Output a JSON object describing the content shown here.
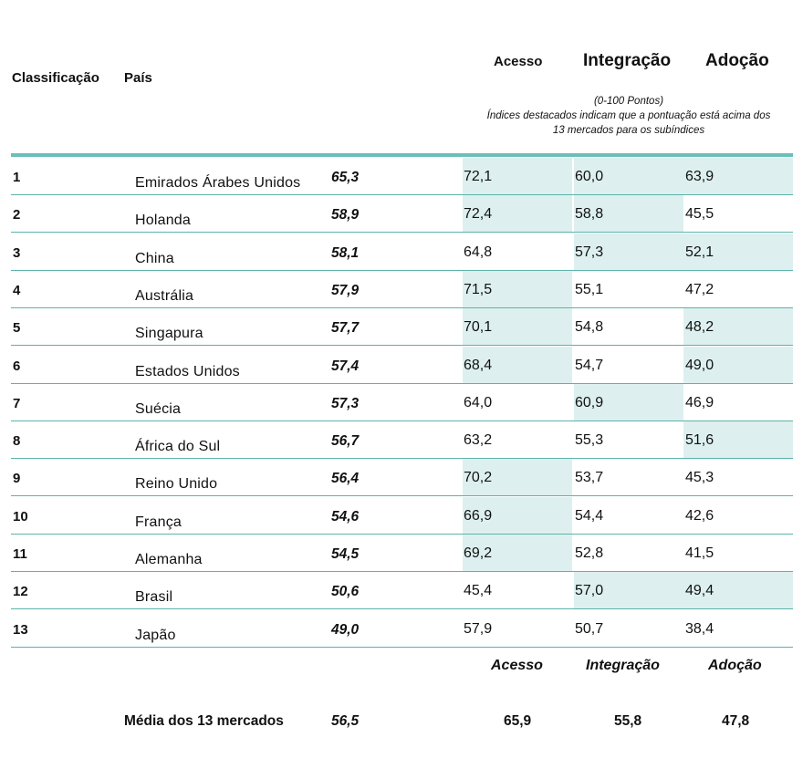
{
  "header": {
    "col_rank": "Classificação",
    "col_country": "País",
    "col_access": "Acesso",
    "col_integration": "Integração",
    "col_adoption": "Adoção",
    "note_line1": "(0-100 Pontos)",
    "note_line2": "Índices destacados indicam que a pontuação está acima dos",
    "note_line3": "13 mercados para os subíndices"
  },
  "rows": [
    {
      "rank": "1",
      "country": "Emirados Árabes Unidos",
      "score": "65,3",
      "access": "72,1",
      "integration": "60,0",
      "adoption": "63,9",
      "hl": [
        true,
        true,
        true
      ]
    },
    {
      "rank": "2",
      "country": "Holanda",
      "score": "58,9",
      "access": "72,4",
      "integration": "58,8",
      "adoption": "45,5",
      "hl": [
        true,
        true,
        false
      ]
    },
    {
      "rank": "3",
      "country": "China",
      "score": "58,1",
      "access": "64,8",
      "integration": "57,3",
      "adoption": "52,1",
      "hl": [
        false,
        true,
        true
      ]
    },
    {
      "rank": "4",
      "country": "Austrália",
      "score": "57,9",
      "access": "71,5",
      "integration": "55,1",
      "adoption": "47,2",
      "hl": [
        true,
        false,
        false
      ]
    },
    {
      "rank": "5",
      "country": "Singapura",
      "score": "57,7",
      "access": "70,1",
      "integration": "54,8",
      "adoption": "48,2",
      "hl": [
        true,
        false,
        true
      ]
    },
    {
      "rank": "6",
      "country": "Estados Unidos",
      "score": "57,4",
      "access": "68,4",
      "integration": "54,7",
      "adoption": "49,0",
      "hl": [
        true,
        false,
        true
      ]
    },
    {
      "rank": "7",
      "country": "Suécia",
      "score": "57,3",
      "access": "64,0",
      "integration": "60,9",
      "adoption": "46,9",
      "hl": [
        false,
        true,
        false
      ]
    },
    {
      "rank": "8",
      "country": "África do Sul",
      "score": "56,7",
      "access": "63,2",
      "integration": "55,3",
      "adoption": "51,6",
      "hl": [
        false,
        false,
        true
      ]
    },
    {
      "rank": "9",
      "country": "Reino Unido",
      "score": "56,4",
      "access": "70,2",
      "integration": "53,7",
      "adoption": "45,3",
      "hl": [
        true,
        false,
        false
      ]
    },
    {
      "rank": "10",
      "country": "França",
      "score": "54,6",
      "access": "66,9",
      "integration": "54,4",
      "adoption": "42,6",
      "hl": [
        true,
        false,
        false
      ]
    },
    {
      "rank": "11",
      "country": "Alemanha",
      "score": "54,5",
      "access": "69,2",
      "integration": "52,8",
      "adoption": "41,5",
      "hl": [
        true,
        false,
        false
      ]
    },
    {
      "rank": "12",
      "country": "Brasil",
      "score": "50,6",
      "access": "45,4",
      "integration": "57,0",
      "adoption": "49,4",
      "hl": [
        false,
        true,
        true
      ]
    },
    {
      "rank": "13",
      "country": "Japão",
      "score": "49,0",
      "access": "57,9",
      "integration": "50,7",
      "adoption": "38,4",
      "hl": [
        false,
        false,
        false
      ]
    }
  ],
  "footer": {
    "col_access": "Acesso",
    "col_integration": "Integração",
    "col_adoption": "Adoção",
    "avg_label": "Média dos 13 mercados",
    "avg_score": "56,5",
    "avg_access": "65,9",
    "avg_integration": "55,8",
    "avg_adoption": "47,8"
  },
  "colors": {
    "highlight": "#ddf0ef",
    "rule": "#5db3ab"
  }
}
